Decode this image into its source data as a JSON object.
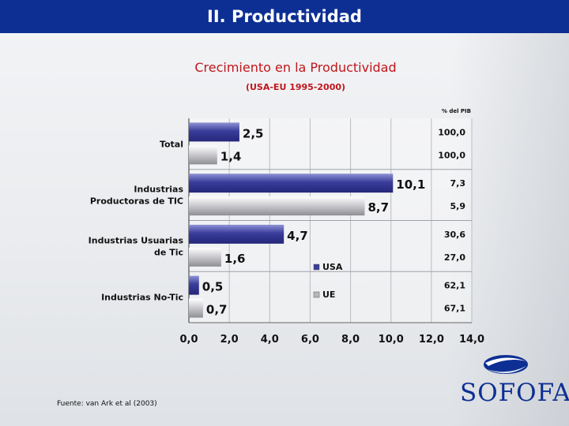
{
  "header": {
    "title": "II. Productividad"
  },
  "chart_data": {
    "type": "bar",
    "orientation": "horizontal",
    "title": "Crecimiento en la Productividad",
    "subtitle": "(USA-EU 1995-2000)",
    "categories": [
      "Total",
      "Industrias Productoras de TIC",
      "Industrias Usuarias de Tic",
      "Industrias No-Tic"
    ],
    "category_lines": [
      [
        "Total"
      ],
      [
        "Industrias",
        "Productoras de TIC"
      ],
      [
        "Industrias Usuarias",
        "de Tic"
      ],
      [
        "Industrias No-Tic"
      ]
    ],
    "series": [
      {
        "name": "USA",
        "values": [
          2.5,
          10.1,
          4.7,
          0.5
        ],
        "labels": [
          "2,5",
          "10,1",
          "4,7",
          "0,5"
        ],
        "pib_share": [
          "100,0",
          "7,3",
          "30,6",
          "62,1"
        ],
        "color": "#3a3d9a"
      },
      {
        "name": "UE",
        "values": [
          1.4,
          8.7,
          1.6,
          0.7
        ],
        "labels": [
          "1,4",
          "8,7",
          "1,6",
          "0,7"
        ],
        "pib_share": [
          "100,0",
          "5,9",
          "27,0",
          "67,1"
        ],
        "color": "#b8b8bc"
      }
    ],
    "xlim": [
      0,
      14
    ],
    "x_ticks": [
      "0,0",
      "2,0",
      "4,0",
      "6,0",
      "8,0",
      "10,0",
      "12,0",
      "14,0"
    ],
    "right_column_header": "% del PIB",
    "grid": true,
    "legend": "inside-right"
  },
  "source": {
    "text": "Fuente: van Ark et al (2003)"
  },
  "logo": {
    "text": "SOFOFA"
  },
  "colors": {
    "header": "#0d2f93",
    "title": "#c0161b",
    "logo": "#0d2f93"
  }
}
